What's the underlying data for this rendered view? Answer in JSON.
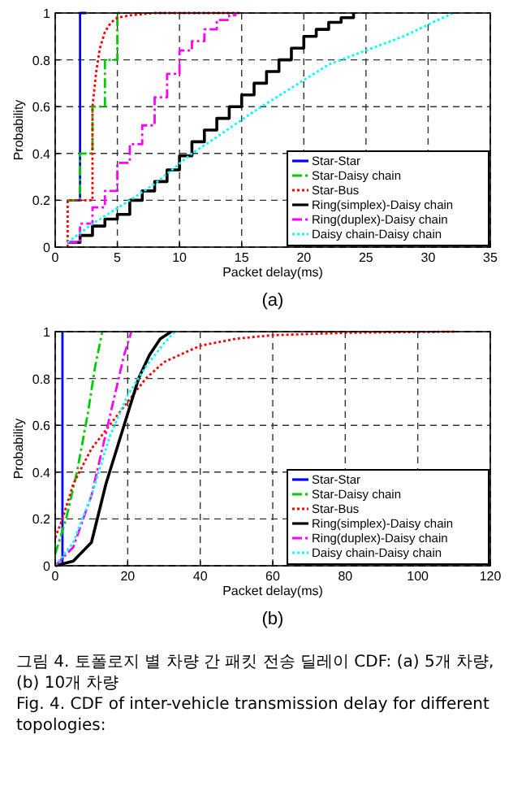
{
  "chart_data": [
    {
      "type": "line",
      "xlabel": "Packet delay(ms)",
      "ylabel": "Probability",
      "xlim": [
        0,
        35
      ],
      "xticks": [
        0,
        5,
        10,
        15,
        20,
        25,
        30,
        35
      ],
      "ylim": [
        0,
        1
      ],
      "yticks": [
        0,
        0.2,
        0.4,
        0.6,
        0.8,
        1
      ],
      "grid": true,
      "legend": "bottom right",
      "annotations": [
        "(a)"
      ],
      "series": [
        {
          "name": "Star-Star",
          "type": "step",
          "color": "#0000ff",
          "line_style": "solid",
          "x": [
            1,
            2,
            2.5
          ],
          "values": [
            0.2,
            1,
            1
          ]
        },
        {
          "name": "Star-Daisy chain",
          "type": "step",
          "color": "#00cc00",
          "line_style": "dashed",
          "x": [
            1,
            2,
            3,
            4,
            5,
            5.5
          ],
          "values": [
            0.2,
            0.4,
            0.6,
            0.8,
            1,
            1
          ]
        },
        {
          "name": "Star-Bus",
          "type": "line",
          "color": "#ff0000",
          "line_style": "dotted",
          "x": [
            1,
            1,
            3,
            3,
            3.3,
            3.6,
            4,
            4.5,
            5,
            6,
            8,
            15
          ],
          "values": [
            0,
            0.2,
            0.2,
            0.6,
            0.75,
            0.85,
            0.92,
            0.96,
            0.98,
            0.99,
            1,
            1
          ]
        },
        {
          "name": "Ring(simplex)-Daisy chain",
          "type": "step",
          "color": "#000000",
          "line_style": "solid",
          "x": [
            1,
            2,
            3,
            4,
            5,
            6,
            7,
            8,
            9,
            10,
            11,
            12,
            13,
            14,
            15,
            16,
            17,
            18,
            19,
            20,
            21,
            22,
            23,
            24
          ],
          "values": [
            0.02,
            0.05,
            0.09,
            0.12,
            0.14,
            0.2,
            0.24,
            0.28,
            0.33,
            0.39,
            0.45,
            0.5,
            0.55,
            0.6,
            0.65,
            0.7,
            0.75,
            0.8,
            0.85,
            0.9,
            0.93,
            0.96,
            0.98,
            1
          ]
        },
        {
          "name": "Ring(duplex)-Daisy chain",
          "type": "step",
          "color": "#ff00ff",
          "line_style": "dashed",
          "x": [
            1,
            2,
            3,
            4,
            5,
            6,
            7,
            8,
            9,
            10,
            11,
            12,
            13,
            14,
            14.5
          ],
          "values": [
            0.02,
            0.1,
            0.17,
            0.24,
            0.36,
            0.44,
            0.52,
            0.64,
            0.74,
            0.84,
            0.88,
            0.93,
            0.97,
            0.99,
            1
          ]
        },
        {
          "name": "Daisy chain-Daisy chain",
          "type": "line",
          "color": "#00ffff",
          "line_style": "dotted",
          "x": [
            1,
            3,
            6,
            8,
            11,
            13,
            16,
            19,
            22,
            25,
            28,
            30,
            32
          ],
          "values": [
            0.02,
            0.1,
            0.2,
            0.27,
            0.4,
            0.47,
            0.58,
            0.68,
            0.78,
            0.84,
            0.9,
            0.95,
            1
          ]
        }
      ]
    },
    {
      "type": "line",
      "xlabel": "Packet delay(ms)",
      "ylabel": "Probability",
      "xlim": [
        0,
        120
      ],
      "xticks": [
        0,
        20,
        40,
        60,
        80,
        100,
        120
      ],
      "ylim": [
        0,
        1
      ],
      "yticks": [
        0,
        0.2,
        0.4,
        0.6,
        0.8,
        1
      ],
      "grid": true,
      "legend": "bottom right",
      "annotations": [
        "(b)",
        "그림 4. 토폴로지 별 차량 간 패킷 전송 딜레이 CDF: (a) 5개 차량, (b) 10개 차량",
        "Fig. 4. CDF of inter-vehicle transmission delay for different topologies:"
      ],
      "series": [
        {
          "name": "Star-Star",
          "type": "line",
          "color": "#0000ff",
          "line_style": "solid",
          "x": [
            2,
            2
          ],
          "values": [
            0,
            1
          ]
        },
        {
          "name": "Star-Daisy chain",
          "type": "line",
          "color": "#00cc00",
          "line_style": "dashed",
          "x": [
            0,
            3,
            6,
            9,
            11,
            13
          ],
          "values": [
            0.05,
            0.2,
            0.4,
            0.65,
            0.85,
            1
          ]
        },
        {
          "name": "Star-Bus",
          "type": "line",
          "color": "#ff0000",
          "line_style": "dotted",
          "x": [
            0,
            2,
            5,
            10,
            20,
            25,
            30,
            40,
            50,
            60,
            80,
            110
          ],
          "values": [
            0.12,
            0.2,
            0.35,
            0.5,
            0.7,
            0.8,
            0.87,
            0.94,
            0.97,
            0.985,
            0.995,
            1
          ]
        },
        {
          "name": "Ring(simplex)-Daisy chain",
          "type": "line",
          "color": "#000000",
          "line_style": "solid",
          "x": [
            0,
            5,
            10,
            14,
            17,
            20,
            23,
            26,
            29,
            32
          ],
          "values": [
            0,
            0.02,
            0.1,
            0.35,
            0.5,
            0.65,
            0.8,
            0.9,
            0.97,
            1
          ]
        },
        {
          "name": "Ring(duplex)-Daisy chain",
          "type": "line",
          "color": "#ff00ff",
          "line_style": "dashed",
          "x": [
            0,
            5,
            10,
            13,
            16,
            19,
            21
          ],
          "values": [
            0,
            0.08,
            0.3,
            0.5,
            0.7,
            0.9,
            1
          ]
        },
        {
          "name": "Daisy chain-Daisy chain",
          "type": "line",
          "color": "#00ffff",
          "line_style": "dotted",
          "x": [
            0,
            5,
            10,
            15,
            20,
            25,
            30,
            33
          ],
          "values": [
            0,
            0.1,
            0.3,
            0.55,
            0.73,
            0.85,
            0.95,
            1
          ]
        }
      ]
    }
  ]
}
